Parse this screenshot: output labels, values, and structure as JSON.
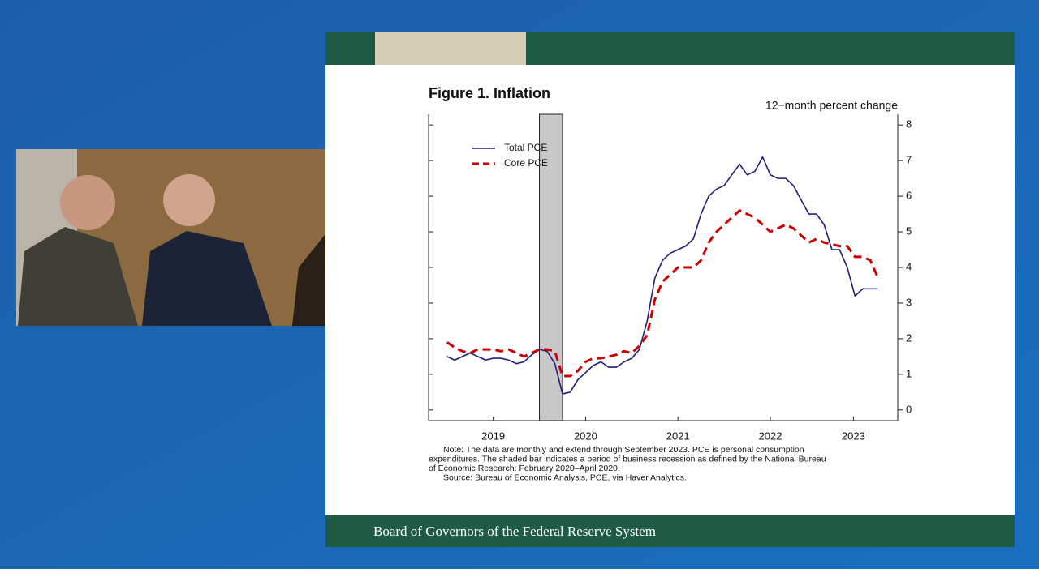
{
  "chart_data": {
    "type": "line",
    "title": "Figure 1. Inflation",
    "y_label": "12−month percent change",
    "x": [
      2019,
      2019.083,
      2019.167,
      2019.25,
      2019.333,
      2019.417,
      2019.5,
      2019.583,
      2019.667,
      2019.75,
      2019.833,
      2019.917,
      2020,
      2020.083,
      2020.167,
      2020.25,
      2020.333,
      2020.417,
      2020.5,
      2020.583,
      2020.667,
      2020.75,
      2020.833,
      2020.917,
      2021,
      2021.083,
      2021.167,
      2021.25,
      2021.333,
      2021.417,
      2021.5,
      2021.583,
      2021.667,
      2021.75,
      2021.833,
      2021.917,
      2022,
      2022.083,
      2022.167,
      2022.25,
      2022.333,
      2022.417,
      2022.5,
      2022.583,
      2022.667,
      2022.75,
      2022.833,
      2022.917,
      2023,
      2023.083,
      2023.167,
      2023.25,
      2023.333,
      2023.417,
      2023.5,
      2023.583,
      2023.667
    ],
    "series": [
      {
        "name": "Total PCE",
        "color": "#1f1f7a",
        "dash": false,
        "values": [
          1.5,
          1.4,
          1.5,
          1.6,
          1.5,
          1.4,
          1.45,
          1.45,
          1.4,
          1.3,
          1.35,
          1.55,
          1.7,
          1.65,
          1.3,
          0.45,
          0.5,
          0.85,
          1.05,
          1.25,
          1.35,
          1.2,
          1.2,
          1.35,
          1.45,
          1.7,
          2.5,
          3.7,
          4.2,
          4.4,
          4.5,
          4.6,
          4.8,
          5.5,
          6.0,
          6.2,
          6.3,
          6.6,
          6.9,
          6.6,
          6.7,
          7.1,
          6.6,
          6.5,
          6.5,
          6.3,
          5.9,
          5.5,
          5.5,
          5.2,
          4.5,
          4.5,
          4.0,
          3.2,
          3.4,
          3.4,
          3.4
        ]
      },
      {
        "name": "Core PCE",
        "color": "#cc0000",
        "dash": true,
        "values": [
          1.9,
          1.75,
          1.65,
          1.6,
          1.7,
          1.7,
          1.7,
          1.65,
          1.7,
          1.6,
          1.5,
          1.6,
          1.7,
          1.7,
          1.65,
          0.95,
          0.95,
          1.1,
          1.35,
          1.45,
          1.45,
          1.5,
          1.55,
          1.65,
          1.6,
          1.8,
          2.1,
          3.1,
          3.6,
          3.8,
          4.0,
          4.0,
          4.0,
          4.2,
          4.7,
          5.0,
          5.2,
          5.4,
          5.6,
          5.5,
          5.4,
          5.2,
          5.0,
          5.1,
          5.2,
          5.1,
          4.9,
          4.7,
          4.8,
          4.7,
          4.65,
          4.6,
          4.6,
          4.3,
          4.3,
          4.2,
          3.7
        ]
      }
    ],
    "recession": [
      2020,
      2020.25
    ],
    "xlim": [
      2018.8,
      2023.88
    ],
    "ylim": [
      -0.3,
      8.3
    ],
    "xticks": [
      {
        "value": 2019.5,
        "label": "2019"
      },
      {
        "value": 2020.5,
        "label": "2020"
      },
      {
        "value": 2021.5,
        "label": "2021"
      },
      {
        "value": 2022.5,
        "label": "2022"
      },
      {
        "value": 2023.4,
        "label": "2023"
      }
    ],
    "yticks": [
      0,
      1,
      2,
      3,
      4,
      5,
      6,
      7,
      8
    ],
    "notes": [
      "Note: The data are monthly and extend through September 2023. PCE is personal consumption",
      "expenditures. The shaded bar indicates a period of business recession as defined by the National Bureau",
      "of Economic Research: February 2020–April 2020.",
      "Source: Bureau of Economic Analysis, PCE, via Haver Analytics."
    ],
    "footer": "Board of Governors of the Federal Reserve System",
    "grid": false
  }
}
